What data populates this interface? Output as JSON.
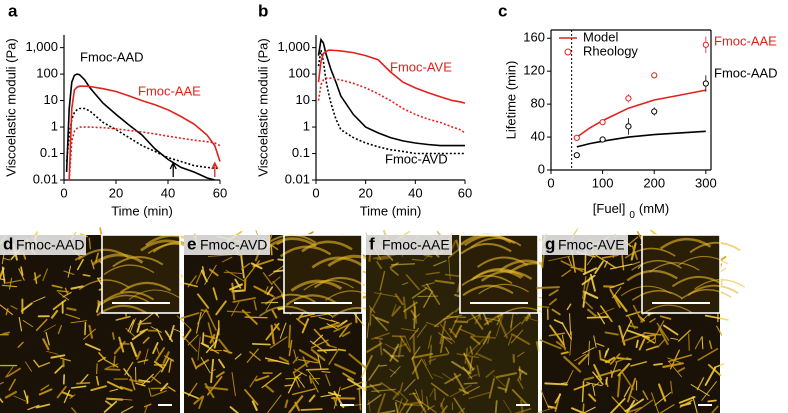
{
  "chart_data": [
    {
      "type": "line",
      "panel_label": "a",
      "log_y": true,
      "ylabel": "Viscoelastic moduli (Pa)",
      "xlabel": "Time (min)",
      "xlim": [
        0,
        60
      ],
      "xticks": [
        0,
        20,
        40,
        60
      ],
      "ylim": [
        0.01,
        3000
      ],
      "yticks": [
        0.01,
        0.1,
        1,
        10,
        100,
        {
          "value": 1000,
          "label": "1,000"
        }
      ],
      "x": [
        1,
        2,
        3,
        4,
        5,
        6,
        8,
        10,
        15,
        20,
        25,
        30,
        35,
        40,
        45,
        50,
        55,
        58,
        60
      ],
      "series": [
        {
          "color": "#000000",
          "style": "solid",
          "values": [
            0.02,
            5,
            50,
            90,
            100,
            95,
            60,
            30,
            8,
            3,
            1.2,
            0.5,
            0.15,
            0.06,
            0.03,
            0.02,
            0.012,
            0.01,
            null
          ]
        },
        {
          "color": "#000000",
          "style": "dotted",
          "values": [
            0.05,
            0.5,
            2,
            3.5,
            4.5,
            5,
            5,
            4,
            1.5,
            0.8,
            0.4,
            0.2,
            0.12,
            0.07,
            0.05,
            0.035,
            0.03,
            0.028,
            0.028
          ]
        },
        {
          "color": "#e3211c",
          "style": "solid",
          "values": [
            null,
            0.01,
            5,
            25,
            32,
            35,
            35,
            34,
            28,
            22,
            15,
            10,
            7,
            4.5,
            2.5,
            1.3,
            0.5,
            0.2,
            0.05
          ]
        },
        {
          "color": "#e3211c",
          "style": "dotted",
          "values": [
            null,
            0.01,
            0.3,
            0.7,
            0.9,
            1,
            1,
            1,
            0.95,
            0.85,
            0.75,
            0.65,
            0.55,
            0.45,
            0.38,
            0.32,
            0.28,
            0.25,
            0.2
          ]
        }
      ],
      "markers": [
        {
          "x": 42,
          "color": "#000000"
        },
        {
          "x": 58,
          "color": "#e3211c"
        }
      ],
      "annotations": [
        {
          "text": "Fmoc-AAD",
          "color": "#000000"
        },
        {
          "text": "Fmoc-AAE",
          "color": "#e3211c"
        }
      ]
    },
    {
      "type": "line",
      "panel_label": "b",
      "log_y": true,
      "ylabel": "Viscoelastic moduli (Pa)",
      "xlabel": "Time (min)",
      "xlim": [
        0,
        60
      ],
      "xticks": [
        0,
        20,
        40,
        60
      ],
      "ylim": [
        0.01,
        3000
      ],
      "yticks": [
        0.01,
        0.1,
        1,
        10,
        100,
        {
          "value": 1000,
          "label": "1,000"
        }
      ],
      "x": [
        1,
        2,
        3,
        4,
        5,
        6,
        8,
        10,
        15,
        20,
        25,
        30,
        35,
        40,
        45,
        50,
        55,
        58,
        60
      ],
      "series": [
        {
          "color": "#000000",
          "style": "solid",
          "values": [
            500,
            2000,
            1500,
            600,
            300,
            150,
            50,
            15,
            3,
            1,
            0.6,
            0.4,
            0.3,
            0.25,
            0.22,
            0.2,
            0.2,
            0.2,
            0.2
          ]
        },
        {
          "color": "#000000",
          "style": "dotted",
          "values": [
            200,
            800,
            300,
            60,
            20,
            8,
            2,
            0.8,
            0.4,
            0.25,
            0.18,
            0.14,
            0.12,
            0.1,
            0.1,
            0.1,
            0.1,
            0.1,
            0.1
          ]
        },
        {
          "color": "#e3211c",
          "style": "solid",
          "values": [
            50,
            300,
            600,
            700,
            800,
            800,
            780,
            750,
            650,
            500,
            350,
            120,
            50,
            30,
            20,
            14,
            10,
            9,
            8
          ]
        },
        {
          "color": "#e3211c",
          "style": "dotted",
          "values": [
            10,
            40,
            60,
            70,
            70,
            70,
            65,
            60,
            45,
            30,
            18,
            10,
            5,
            3,
            2,
            1.5,
            1,
            0.8,
            0.6
          ]
        }
      ],
      "annotations": [
        {
          "text": "Fmoc-AVE",
          "color": "#e3211c"
        },
        {
          "text": "Fmoc-AVD",
          "color": "#000000"
        }
      ]
    },
    {
      "type": "line_scatter",
      "panel_label": "c",
      "ylabel": "Lifetime (min)",
      "xlabel": {
        "main": "[Fuel]",
        "sub": "0",
        "unit": "(mM)"
      },
      "xlim": [
        0,
        310
      ],
      "xticks": [
        0,
        100,
        200,
        300
      ],
      "ylim": [
        0,
        170
      ],
      "yticks": [
        0,
        40,
        80,
        120,
        160
      ],
      "vline": 40,
      "series": [
        {
          "name": "Model",
          "kind": "line",
          "color": "#e3211c",
          "x": [
            50,
            75,
            100,
            150,
            200,
            250,
            300
          ],
          "values": [
            40,
            51,
            60,
            75,
            85,
            91,
            97
          ]
        },
        {
          "kind": "line",
          "color": "#000000",
          "x": [
            50,
            75,
            100,
            150,
            200,
            250,
            300
          ],
          "values": [
            28,
            32,
            35,
            40,
            43,
            45,
            47
          ]
        },
        {
          "name": "Rheology",
          "kind": "scatter",
          "color": "#e3211c",
          "x": [
            50,
            100,
            150,
            200,
            300
          ],
          "values": [
            39,
            58,
            87,
            115,
            152
          ],
          "errors": [
            2,
            2,
            5,
            2,
            10
          ]
        },
        {
          "kind": "scatter",
          "color": "#000000",
          "x": [
            50,
            100,
            150,
            200,
            300
          ],
          "values": [
            18,
            37,
            53,
            71,
            105
          ],
          "errors": [
            1,
            2,
            10,
            5,
            10
          ]
        }
      ],
      "annotations": [
        {
          "text": "Fmoc-AAE",
          "color": "#e3211c"
        },
        {
          "text": "Fmoc-AAD",
          "color": "#000000"
        }
      ]
    }
  ],
  "image_panels": [
    {
      "panel_label": "d",
      "label": "Fmoc-AAD"
    },
    {
      "panel_label": "e",
      "label": "Fmoc-AVD"
    },
    {
      "panel_label": "f",
      "label": "Fmoc-AAE"
    },
    {
      "panel_label": "g",
      "label": "Fmoc-AVE"
    }
  ]
}
